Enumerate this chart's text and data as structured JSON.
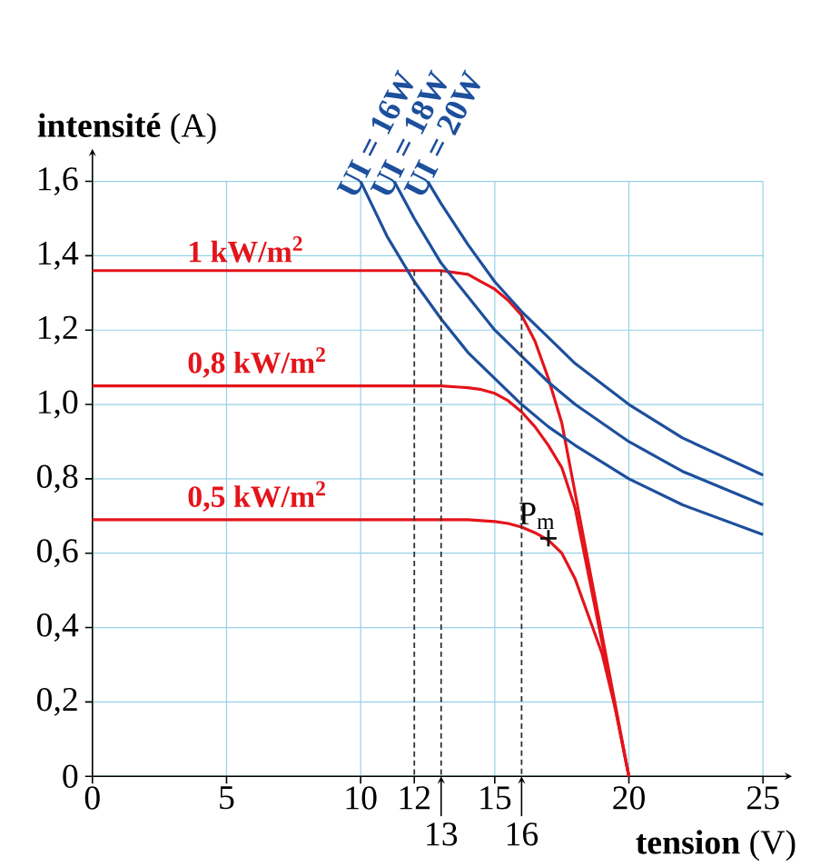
{
  "chart_data": {
    "type": "line",
    "xlabel": "**tension** (V)",
    "ylabel": "**intensité** (A)",
    "xlim": [
      0,
      25
    ],
    "ylim": [
      0,
      1.6
    ],
    "xticks": [
      0,
      5,
      10,
      12,
      15,
      20,
      25
    ],
    "yticks": [
      0,
      {
        "value": 0.2,
        "label": "0,2"
      },
      {
        "value": 0.4,
        "label": "0,4"
      },
      {
        "value": 0.6,
        "label": "0,6"
      },
      {
        "value": 0.8,
        "label": "0,8"
      },
      {
        "value": 1.0,
        "label": "1,0"
      },
      {
        "value": 1.2,
        "label": "1,2"
      },
      {
        "value": 1.4,
        "label": "1,4"
      },
      {
        "value": 1.6,
        "label": "1,6"
      }
    ],
    "grid": true,
    "series": [
      {
        "name": "1 kW/m$^{2}$",
        "color": "#e4141b",
        "x": [
          0,
          10,
          12,
          13,
          13.5,
          14,
          14.5,
          15,
          15.5,
          16,
          16.5,
          17,
          17.5,
          18,
          19,
          20
        ],
        "values": [
          1.36,
          1.36,
          1.36,
          1.36,
          1.355,
          1.35,
          1.33,
          1.31,
          1.28,
          1.24,
          1.17,
          1.07,
          0.95,
          0.76,
          0.38,
          0
        ]
      },
      {
        "name": "0,8 kW/m$^{2}$",
        "color": "#e4141b",
        "x": [
          0,
          10,
          12,
          13,
          14,
          14.5,
          15,
          15.5,
          16,
          16.5,
          17,
          17.5,
          18,
          19,
          20
        ],
        "values": [
          1.05,
          1.05,
          1.05,
          1.05,
          1.045,
          1.04,
          1.03,
          1.01,
          0.98,
          0.94,
          0.89,
          0.83,
          0.72,
          0.36,
          0
        ]
      },
      {
        "name": "0,5 kW/m$^{2}$",
        "color": "#e4141b",
        "x": [
          0,
          10,
          14,
          15,
          15.5,
          16,
          16.5,
          17,
          17.5,
          18,
          18.5,
          19,
          19.5,
          20
        ],
        "values": [
          0.69,
          0.69,
          0.69,
          0.685,
          0.68,
          0.67,
          0.655,
          0.635,
          0.6,
          0.53,
          0.43,
          0.33,
          0.18,
          0
        ]
      },
      {
        "name": "UI = 16W",
        "color": "#1d4f9c",
        "x": [
          10,
          11,
          12,
          13,
          14,
          15,
          16,
          17,
          18,
          20,
          22,
          25
        ],
        "values": [
          1.6,
          1.45,
          1.33,
          1.23,
          1.14,
          1.07,
          1.0,
          0.94,
          0.89,
          0.8,
          0.73,
          0.65
        ]
      },
      {
        "name": "UI = 18W",
        "color": "#1d4f9c",
        "x": [
          11.25,
          12,
          13,
          14,
          15,
          16,
          17,
          18,
          20,
          22,
          25
        ],
        "values": [
          1.6,
          1.5,
          1.38,
          1.29,
          1.2,
          1.13,
          1.06,
          1.0,
          0.9,
          0.82,
          0.73
        ]
      },
      {
        "name": "UI = 20W",
        "color": "#1d4f9c",
        "x": [
          12.5,
          13,
          14,
          15,
          16,
          17,
          18,
          20,
          22,
          25
        ],
        "values": [
          1.6,
          1.54,
          1.43,
          1.33,
          1.25,
          1.18,
          1.11,
          1.0,
          0.91,
          0.81
        ]
      },
      {
        "color": "#333333",
        "line_style": "dashed",
        "x": [
          12,
          12
        ],
        "values": [
          1.36,
          0
        ]
      },
      {
        "color": "#333333",
        "line_style": "dashed",
        "x": [
          13,
          13
        ],
        "values": [
          1.36,
          0
        ]
      },
      {
        "color": "#333333",
        "line_style": "dashed",
        "x": [
          16,
          16
        ],
        "values": [
          1.24,
          0
        ]
      },
      {
        "type": "scatter",
        "marker": "cross",
        "color": "#111111",
        "x": [
          17
        ],
        "values": [
          0.64
        ]
      }
    ],
    "annotations": [
      {
        "text": "P$_{m}$",
        "x": 17,
        "y": 0.64
      },
      {
        "text": "13",
        "x": 13,
        "y": 0
      },
      {
        "text": "16",
        "x": 16,
        "y": 0
      }
    ]
  }
}
